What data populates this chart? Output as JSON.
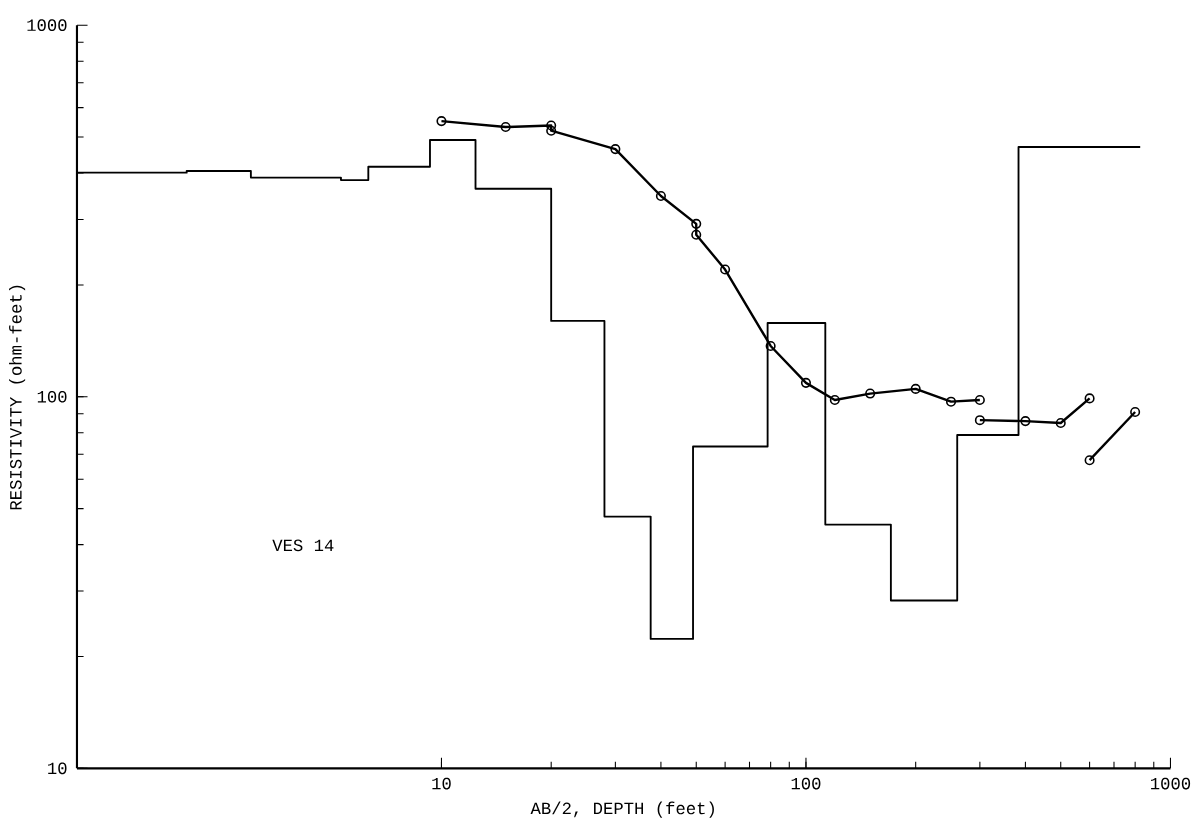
{
  "chart_data": {
    "type": "line",
    "xlabel": "AB/2, DEPTH (feet)",
    "ylabel": "RESISTIVITY (ohm-feet)",
    "log": "xy",
    "xlim": [
      1,
      1000
    ],
    "ylim": [
      10,
      1000
    ],
    "xticks": [
      10,
      100,
      1000
    ],
    "yticks": [
      10,
      100,
      1000
    ],
    "annotations": [
      "VES 14"
    ],
    "series": [
      {
        "type": "step",
        "color": "#000000",
        "marker": "none",
        "x": [
          1,
          2,
          3,
          5.3,
          6.3,
          9.3,
          12.4,
          20,
          28,
          37.5,
          49,
          78.5,
          113,
          171,
          260,
          383,
          826
        ],
        "values": [
          401,
          405,
          389,
          383,
          416,
          491,
          363,
          160,
          47.6,
          22.3,
          73.5,
          158,
          45.3,
          28.3,
          78.9,
          470,
          470
        ]
      },
      {
        "type": "line",
        "color": "#000000",
        "marker": "circle",
        "x": [
          10,
          15,
          20,
          20,
          30,
          40,
          50,
          50,
          60,
          80,
          100,
          120,
          150,
          200,
          250,
          300
        ],
        "values": [
          552,
          532,
          537,
          520,
          464,
          347,
          292,
          273,
          220,
          137,
          109,
          98,
          102,
          105,
          97,
          98
        ]
      },
      {
        "type": "line",
        "color": "#000000",
        "marker": "circle",
        "x": [
          300,
          400,
          500,
          600
        ],
        "values": [
          86.5,
          86,
          85,
          99
        ]
      },
      {
        "type": "line",
        "color": "#000000",
        "marker": "circle",
        "x": [
          600,
          800
        ],
        "values": [
          67.5,
          91
        ]
      }
    ]
  }
}
